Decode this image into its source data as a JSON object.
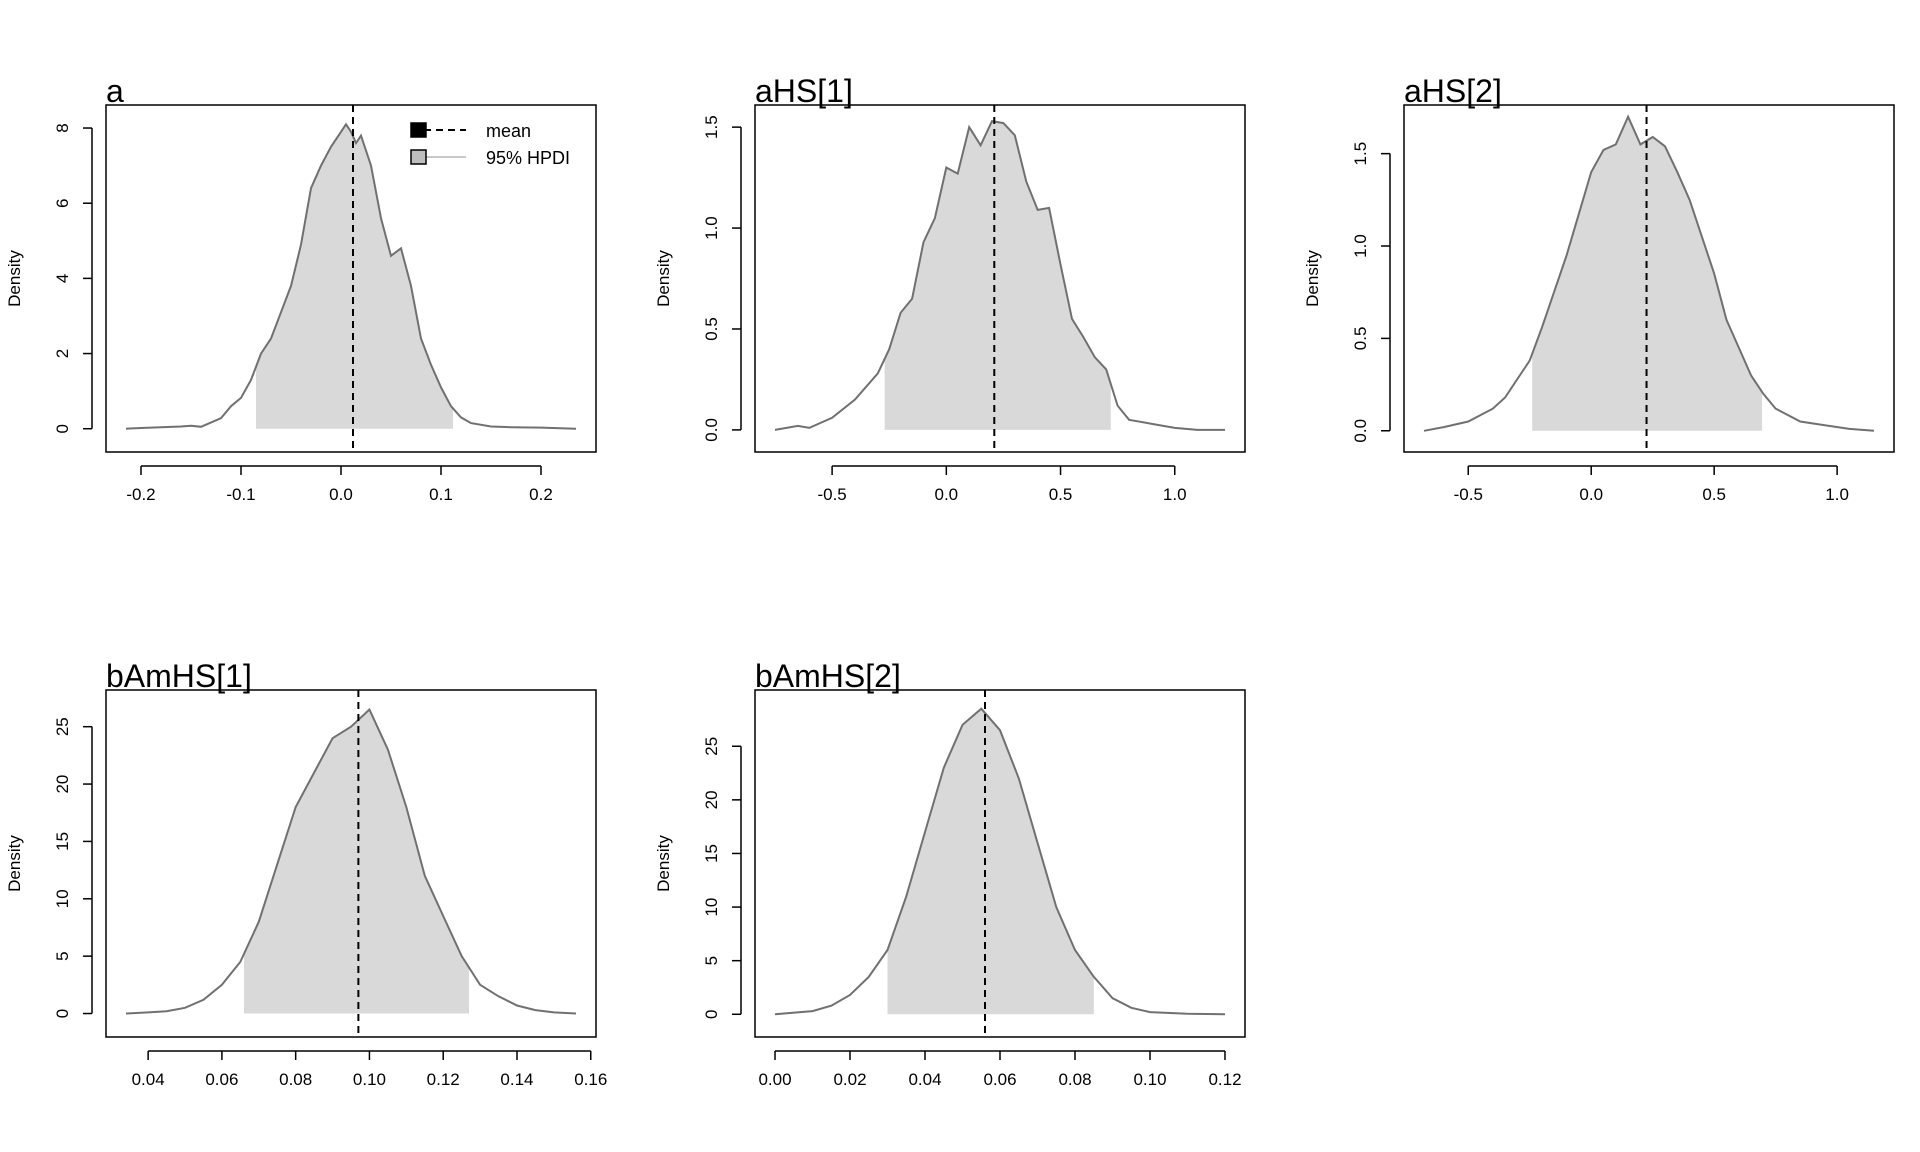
{
  "legend": {
    "entries": [
      {
        "label": "mean",
        "style": "dashed",
        "color": "#000000"
      },
      {
        "label": "95% HPDI",
        "style": "solid",
        "color": "#c8c8c8"
      }
    ],
    "placement": "top-right of first panel"
  },
  "colors": {
    "fill": "#d9d9d9",
    "curve": "#707070",
    "mean_line": "#000000"
  },
  "chart_data": [
    {
      "type": "area",
      "title": "a",
      "ylabel": "Density",
      "xlim": [
        -0.215,
        0.235
      ],
      "ylim": [
        -0.3,
        8.4
      ],
      "xticks": [
        -0.2,
        -0.1,
        0.0,
        0.1,
        0.2
      ],
      "xtick_labels": [
        "-0.2",
        "-0.1",
        "0.0",
        "0.1",
        "0.2"
      ],
      "yticks": [
        0,
        2,
        4,
        6,
        8
      ],
      "ytick_labels": [
        "0",
        "2",
        "4",
        "6",
        "8"
      ],
      "mean": 0.012,
      "hpdi": [
        -0.085,
        0.112
      ],
      "x": [
        -0.215,
        -0.2,
        -0.18,
        -0.16,
        -0.15,
        -0.14,
        -0.12,
        -0.11,
        -0.1,
        -0.09,
        -0.08,
        -0.07,
        -0.06,
        -0.05,
        -0.04,
        -0.03,
        -0.02,
        -0.01,
        0.0,
        0.005,
        0.01,
        0.015,
        0.02,
        0.03,
        0.04,
        0.05,
        0.06,
        0.07,
        0.08,
        0.09,
        0.1,
        0.11,
        0.12,
        0.13,
        0.15,
        0.17,
        0.2,
        0.235
      ],
      "y": [
        0.0,
        0.02,
        0.04,
        0.06,
        0.08,
        0.05,
        0.28,
        0.6,
        0.82,
        1.3,
        2.0,
        2.4,
        3.1,
        3.8,
        4.9,
        6.4,
        7.0,
        7.5,
        7.9,
        8.1,
        7.9,
        7.6,
        7.8,
        7.0,
        5.6,
        4.6,
        4.8,
        3.8,
        2.4,
        1.7,
        1.1,
        0.6,
        0.3,
        0.15,
        0.06,
        0.04,
        0.03,
        0.0
      ]
    },
    {
      "type": "area",
      "title": "aHS[1]",
      "ylabel": "Density",
      "xlim": [
        -0.75,
        1.22
      ],
      "ylim": [
        -0.05,
        1.57
      ],
      "xticks": [
        -0.5,
        0.0,
        0.5,
        1.0
      ],
      "xtick_labels": [
        "-0.5",
        "0.0",
        "0.5",
        "1.0"
      ],
      "yticks": [
        0.0,
        0.5,
        1.0,
        1.5
      ],
      "ytick_labels": [
        "0.0",
        "0.5",
        "1.0",
        "1.5"
      ],
      "mean": 0.21,
      "hpdi": [
        -0.27,
        0.72
      ],
      "x": [
        -0.75,
        -0.65,
        -0.6,
        -0.5,
        -0.4,
        -0.3,
        -0.25,
        -0.2,
        -0.15,
        -0.1,
        -0.05,
        0.0,
        0.05,
        0.1,
        0.15,
        0.2,
        0.25,
        0.3,
        0.35,
        0.4,
        0.45,
        0.5,
        0.55,
        0.6,
        0.65,
        0.7,
        0.75,
        0.8,
        0.85,
        0.9,
        0.95,
        1.0,
        1.1,
        1.22
      ],
      "y": [
        0.0,
        0.02,
        0.01,
        0.06,
        0.15,
        0.28,
        0.4,
        0.58,
        0.65,
        0.93,
        1.05,
        1.3,
        1.27,
        1.5,
        1.41,
        1.53,
        1.52,
        1.46,
        1.23,
        1.09,
        1.1,
        0.82,
        0.55,
        0.46,
        0.36,
        0.3,
        0.12,
        0.05,
        0.04,
        0.03,
        0.02,
        0.01,
        0.0,
        0.0
      ]
    },
    {
      "type": "area",
      "title": "aHS[2]",
      "ylabel": "Density",
      "xlim": [
        -0.68,
        1.15
      ],
      "ylim": [
        -0.05,
        1.72
      ],
      "xticks": [
        -0.5,
        0.0,
        0.5,
        1.0
      ],
      "xtick_labels": [
        "-0.5",
        "0.0",
        "0.5",
        "1.0"
      ],
      "yticks": [
        0.0,
        0.5,
        1.0,
        1.5
      ],
      "ytick_labels": [
        "0.0",
        "0.5",
        "1.0",
        "1.5"
      ],
      "mean": 0.225,
      "hpdi": [
        -0.24,
        0.695
      ],
      "x": [
        -0.68,
        -0.6,
        -0.5,
        -0.4,
        -0.35,
        -0.3,
        -0.25,
        -0.2,
        -0.1,
        0.0,
        0.05,
        0.1,
        0.15,
        0.2,
        0.25,
        0.3,
        0.35,
        0.4,
        0.5,
        0.55,
        0.6,
        0.65,
        0.7,
        0.75,
        0.85,
        0.95,
        1.05,
        1.15
      ],
      "y": [
        0.0,
        0.02,
        0.05,
        0.12,
        0.18,
        0.28,
        0.38,
        0.56,
        0.95,
        1.4,
        1.52,
        1.55,
        1.7,
        1.55,
        1.59,
        1.54,
        1.4,
        1.25,
        0.85,
        0.6,
        0.45,
        0.3,
        0.2,
        0.12,
        0.05,
        0.03,
        0.01,
        0.0
      ]
    },
    {
      "type": "area",
      "title": "bAmHS[1]",
      "ylabel": "Density",
      "xlim": [
        0.034,
        0.156
      ],
      "ylim": [
        -1.0,
        27.5
      ],
      "xticks": [
        0.04,
        0.06,
        0.08,
        0.1,
        0.12,
        0.14,
        0.16
      ],
      "xtick_labels": [
        "0.04",
        "0.06",
        "0.08",
        "0.10",
        "0.12",
        "0.14",
        "0.16"
      ],
      "yticks": [
        0,
        5,
        10,
        15,
        20,
        25
      ],
      "ytick_labels": [
        "0",
        "5",
        "10",
        "15",
        "20",
        "25"
      ],
      "mean": 0.097,
      "hpdi": [
        0.066,
        0.127
      ],
      "x": [
        0.034,
        0.04,
        0.045,
        0.05,
        0.055,
        0.06,
        0.065,
        0.07,
        0.075,
        0.08,
        0.085,
        0.09,
        0.095,
        0.1,
        0.105,
        0.11,
        0.115,
        0.12,
        0.125,
        0.13,
        0.135,
        0.14,
        0.145,
        0.15,
        0.156
      ],
      "y": [
        0.0,
        0.1,
        0.2,
        0.5,
        1.2,
        2.5,
        4.5,
        8.0,
        13.0,
        18.0,
        21.0,
        24.0,
        25.0,
        26.5,
        23.0,
        18.0,
        12.0,
        8.5,
        5.0,
        2.5,
        1.5,
        0.7,
        0.3,
        0.1,
        0.0
      ]
    },
    {
      "type": "area",
      "title": "bAmHS[2]",
      "ylabel": "Density",
      "xlim": [
        0.0,
        0.12
      ],
      "ylim": [
        -1.0,
        29.5
      ],
      "xticks": [
        0.0,
        0.02,
        0.04,
        0.06,
        0.08,
        0.1,
        0.12
      ],
      "xtick_labels": [
        "0.00",
        "0.02",
        "0.04",
        "0.06",
        "0.08",
        "0.10",
        "0.12"
      ],
      "yticks": [
        0,
        5,
        10,
        15,
        20,
        25
      ],
      "ytick_labels": [
        "0",
        "5",
        "10",
        "15",
        "20",
        "25"
      ],
      "mean": 0.056,
      "hpdi": [
        0.03,
        0.085
      ],
      "x": [
        0.0,
        0.01,
        0.015,
        0.02,
        0.025,
        0.03,
        0.035,
        0.04,
        0.045,
        0.05,
        0.055,
        0.06,
        0.065,
        0.07,
        0.075,
        0.08,
        0.085,
        0.09,
        0.095,
        0.1,
        0.11,
        0.12
      ],
      "y": [
        0.0,
        0.3,
        0.8,
        1.8,
        3.5,
        6.0,
        11.0,
        17.0,
        23.0,
        27.0,
        28.5,
        26.5,
        22.0,
        16.0,
        10.0,
        6.0,
        3.5,
        1.5,
        0.6,
        0.2,
        0.05,
        0.0
      ]
    }
  ]
}
